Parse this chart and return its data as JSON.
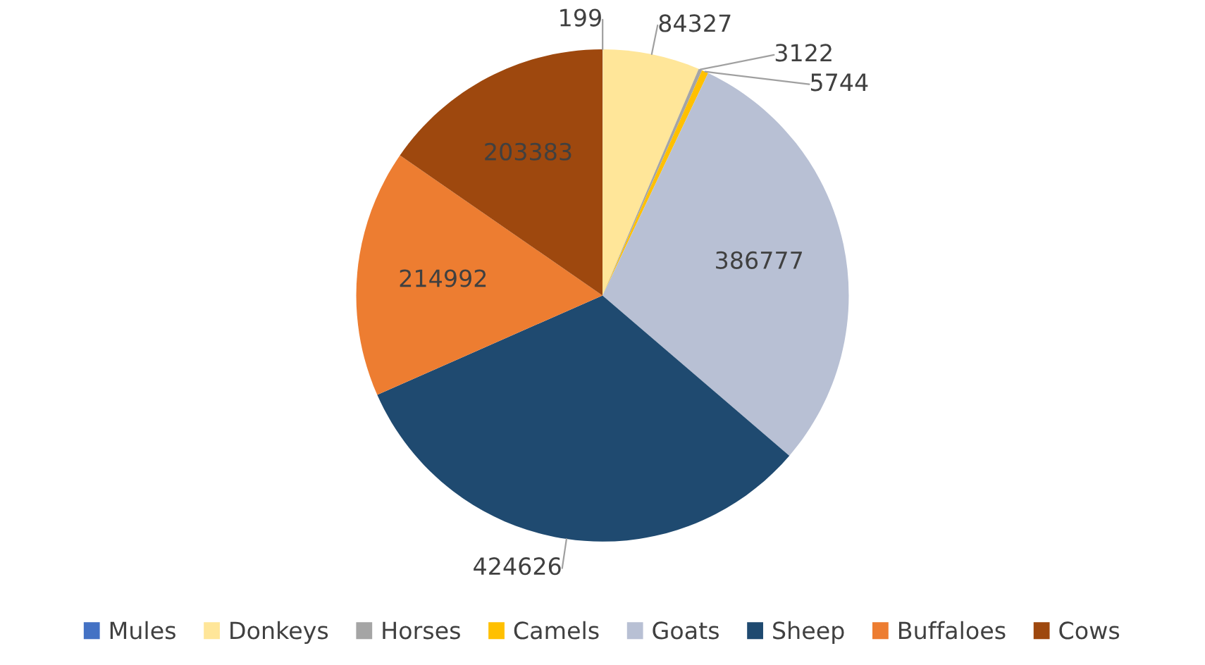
{
  "chart_data": {
    "type": "pie",
    "categories": [
      "Mules",
      "Donkeys",
      "Horses",
      "Camels",
      "Goats",
      "Sheep",
      "Buffaloes",
      "Cows"
    ],
    "values": [
      199,
      84327,
      3122,
      5744,
      386777,
      424626,
      214992,
      203383
    ],
    "colors": [
      "#4472c4",
      "#ffe699",
      "#a5a5a5",
      "#ffc000",
      "#b8c0d4",
      "#1f4a70",
      "#ed7d31",
      "#9e480e"
    ],
    "data_labels": true,
    "legend": "bottom"
  }
}
